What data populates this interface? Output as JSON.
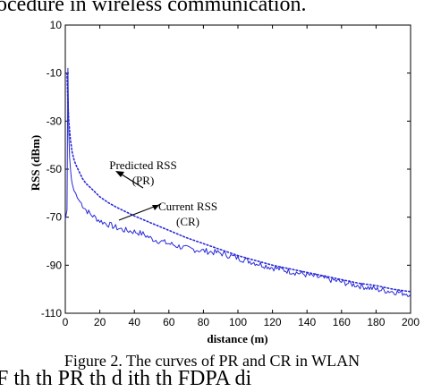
{
  "top_text": "ocedure in wireless communication.",
  "bottom_text": "F    th             th   PR        th d   ith th   FDPA         di",
  "caption": "Figure 2. The curves of PR and CR in WLAN",
  "annotations": {
    "pr_line1": "Predicted RSS",
    "pr_line2": "(PR)",
    "cr_line1": "Current RSS",
    "cr_line2": "(CR)"
  },
  "colors": {
    "series": "#2a2ad8",
    "axis": "#000000",
    "text": "#000000"
  },
  "chart_data": {
    "type": "line",
    "title": "",
    "xlabel": "distance (m)",
    "ylabel": "RSS (dBm)",
    "xlim": [
      0,
      200
    ],
    "ylim": [
      -110,
      10
    ],
    "xticks": [
      0,
      20,
      40,
      60,
      80,
      100,
      120,
      140,
      160,
      180,
      200
    ],
    "yticks": [
      10,
      -10,
      -30,
      -50,
      -70,
      -90,
      -110
    ],
    "grid": false,
    "legend": "none",
    "series": [
      {
        "name": "Predicted RSS (PR)",
        "style": "dotted",
        "x": [
          1,
          1.5,
          2,
          3,
          4,
          5,
          6,
          8,
          10,
          12,
          15,
          20,
          25,
          30,
          40,
          50,
          60,
          70,
          80,
          90,
          100,
          110,
          120,
          130,
          140,
          150,
          160,
          170,
          180,
          190,
          200
        ],
        "y": [
          -10,
          -22,
          -30,
          -38,
          -43,
          -46,
          -48,
          -51,
          -54,
          -56,
          -58,
          -61.5,
          -64,
          -66,
          -69.5,
          -72.5,
          -75.5,
          -78.5,
          -81,
          -83.5,
          -86,
          -88,
          -90,
          -91.5,
          -93,
          -94.5,
          -96,
          -97.5,
          -98.5,
          -100,
          -101
        ]
      },
      {
        "name": "Current RSS (CR)",
        "style": "solid",
        "x": [
          0,
          1,
          1.5,
          2,
          2.5,
          3,
          3.5,
          4,
          5,
          6,
          7,
          8,
          10,
          12,
          15,
          20,
          25,
          30,
          35,
          40,
          45,
          50,
          55,
          60,
          65,
          70,
          75,
          80,
          85,
          90,
          95,
          100,
          110,
          120,
          130,
          140,
          150,
          160,
          170,
          180,
          190,
          200
        ],
        "y": [
          -71,
          -67,
          -8,
          -35,
          -45,
          -50,
          -54,
          -56,
          -59,
          -60,
          -62,
          -63,
          -65,
          -67,
          -69,
          -71.5,
          -73,
          -74.5,
          -75.5,
          -76,
          -77,
          -79,
          -80,
          -81,
          -82,
          -83,
          -83.5,
          -84,
          -84.5,
          -85,
          -86,
          -87,
          -89,
          -91,
          -92.5,
          -94,
          -95.5,
          -97,
          -98.5,
          -100,
          -101,
          -102
        ]
      }
    ]
  }
}
